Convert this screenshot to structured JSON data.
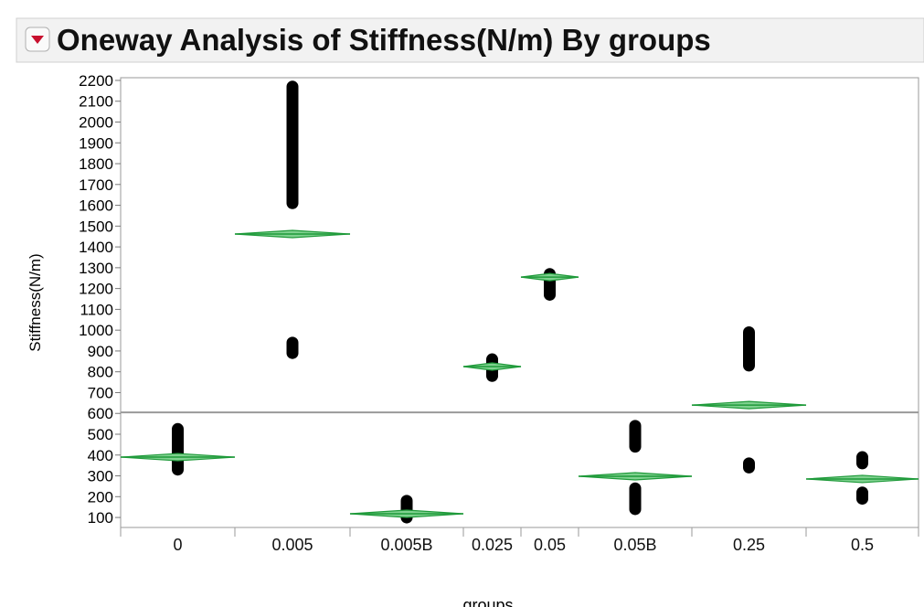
{
  "chart_data": {
    "type": "oneway",
    "title": "Oneway Analysis of Stiffness(N/m) By groups",
    "x_label": "groups",
    "y_label": "Stiffness(N/m)",
    "categories": [
      "0",
      "0.005",
      "0.005B",
      "0.025",
      "0.05",
      "0.05B",
      "0.25",
      "0.5"
    ],
    "means": [
      390,
      1462,
      118,
      825,
      1255,
      298,
      640,
      285
    ],
    "clusters": [
      [
        [
          330,
          525
        ]
      ],
      [
        [
          1610,
          2170
        ],
        [
          890,
          940
        ]
      ],
      [
        [
          100,
          180
        ]
      ],
      [
        [
          780,
          860
        ]
      ],
      [
        [
          1170,
          1270
        ]
      ],
      [
        [
          440,
          540
        ],
        [
          140,
          240
        ]
      ],
      [
        [
          830,
          990
        ],
        [
          340,
          360
        ]
      ],
      [
        [
          360,
          390
        ],
        [
          190,
          220
        ]
      ]
    ],
    "grand_mean": 605,
    "ylim": [
      52,
      2213
    ],
    "yticks": [
      100,
      200,
      300,
      400,
      500,
      600,
      700,
      800,
      900,
      1000,
      1100,
      1200,
      1300,
      1400,
      1500,
      1600,
      1700,
      1800,
      1900,
      2000,
      2100,
      2200
    ],
    "mark_color": "#000000",
    "diamond_color": "#1f9a3a"
  }
}
